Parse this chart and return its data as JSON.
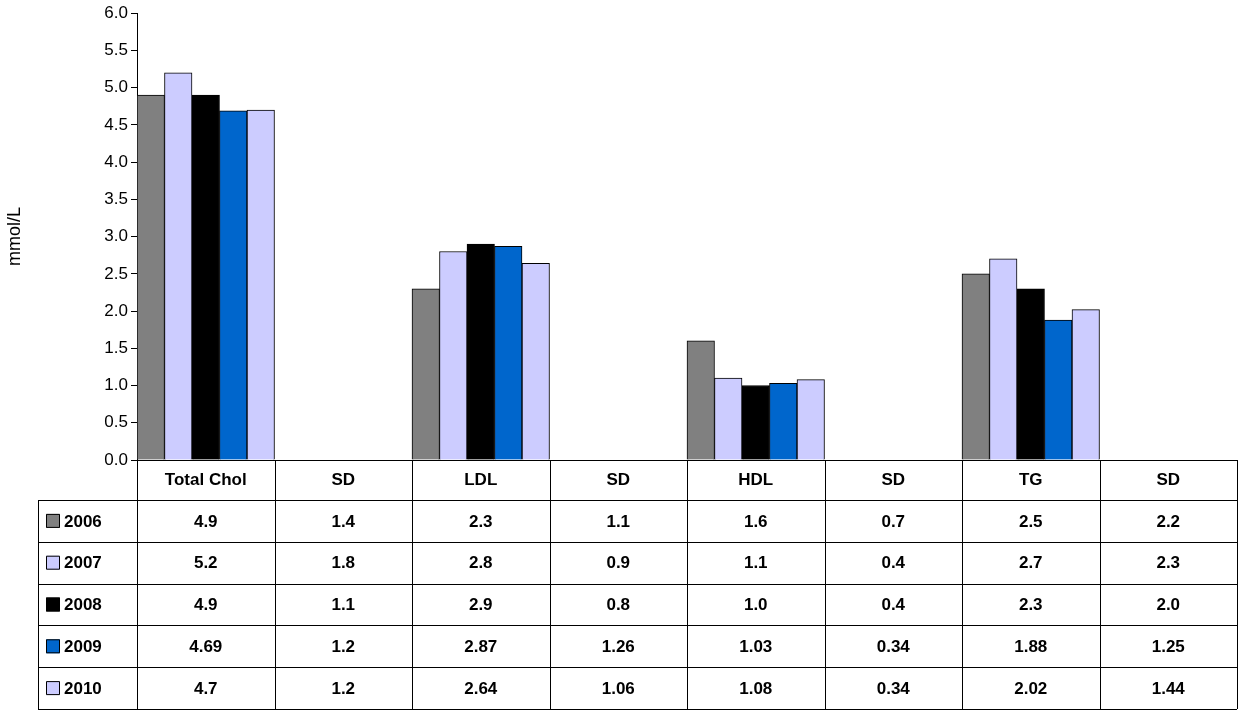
{
  "chart_data": {
    "type": "bar",
    "ylabel": "mmol/L",
    "categories": [
      "Total Chol",
      "SD",
      "LDL",
      "SD",
      "HDL",
      "SD",
      "TG",
      "SD"
    ],
    "series": [
      {
        "name": "2006",
        "color": "#808080",
        "values": [
          4.9,
          null,
          2.3,
          null,
          1.6,
          null,
          2.5,
          null
        ],
        "value_labels": [
          "4.9",
          "1.4",
          "2.3",
          "1.1",
          "1.6",
          "0.7",
          "2.5",
          "2.2"
        ]
      },
      {
        "name": "2007",
        "color": "#ccccff",
        "values": [
          5.2,
          null,
          2.8,
          null,
          1.1,
          null,
          2.7,
          null
        ],
        "value_labels": [
          "5.2",
          "1.8",
          "2.8",
          "0.9",
          "1.1",
          "0.4",
          "2.7",
          "2.3"
        ]
      },
      {
        "name": "2008",
        "color": "#000000",
        "values": [
          4.9,
          null,
          2.9,
          null,
          1.0,
          null,
          2.3,
          null
        ],
        "value_labels": [
          "4.9",
          "1.1",
          "2.9",
          "0.8",
          "1.0",
          "0.4",
          "2.3",
          "2.0"
        ]
      },
      {
        "name": "2009",
        "color": "#0066cc",
        "values": [
          4.69,
          null,
          2.87,
          null,
          1.03,
          null,
          1.88,
          null
        ],
        "value_labels": [
          "4.69",
          "1.2",
          "2.87",
          "1.26",
          "1.03",
          "0.34",
          "1.88",
          "1.25"
        ]
      },
      {
        "name": "2010",
        "color": "#ccccff",
        "values": [
          4.7,
          null,
          2.64,
          null,
          1.08,
          null,
          2.02,
          null
        ],
        "value_labels": [
          "4.7",
          "1.2",
          "2.64",
          "1.06",
          "1.08",
          "0.34",
          "2.02",
          "1.44"
        ]
      }
    ],
    "ylim": [
      0,
      6
    ],
    "yticks": [
      {
        "value": 0,
        "label": "0.0"
      },
      0.5,
      {
        "value": 1,
        "label": "1.0"
      },
      1.5,
      {
        "value": 2,
        "label": "2.0"
      },
      2.5,
      {
        "value": 3,
        "label": "3.0"
      },
      3.5,
      {
        "value": 4,
        "label": "4.0"
      },
      4.5,
      {
        "value": 5,
        "label": "5.0"
      },
      5.5,
      {
        "value": 6,
        "label": "6.0"
      }
    ],
    "grid": false,
    "legend": "bottom"
  }
}
